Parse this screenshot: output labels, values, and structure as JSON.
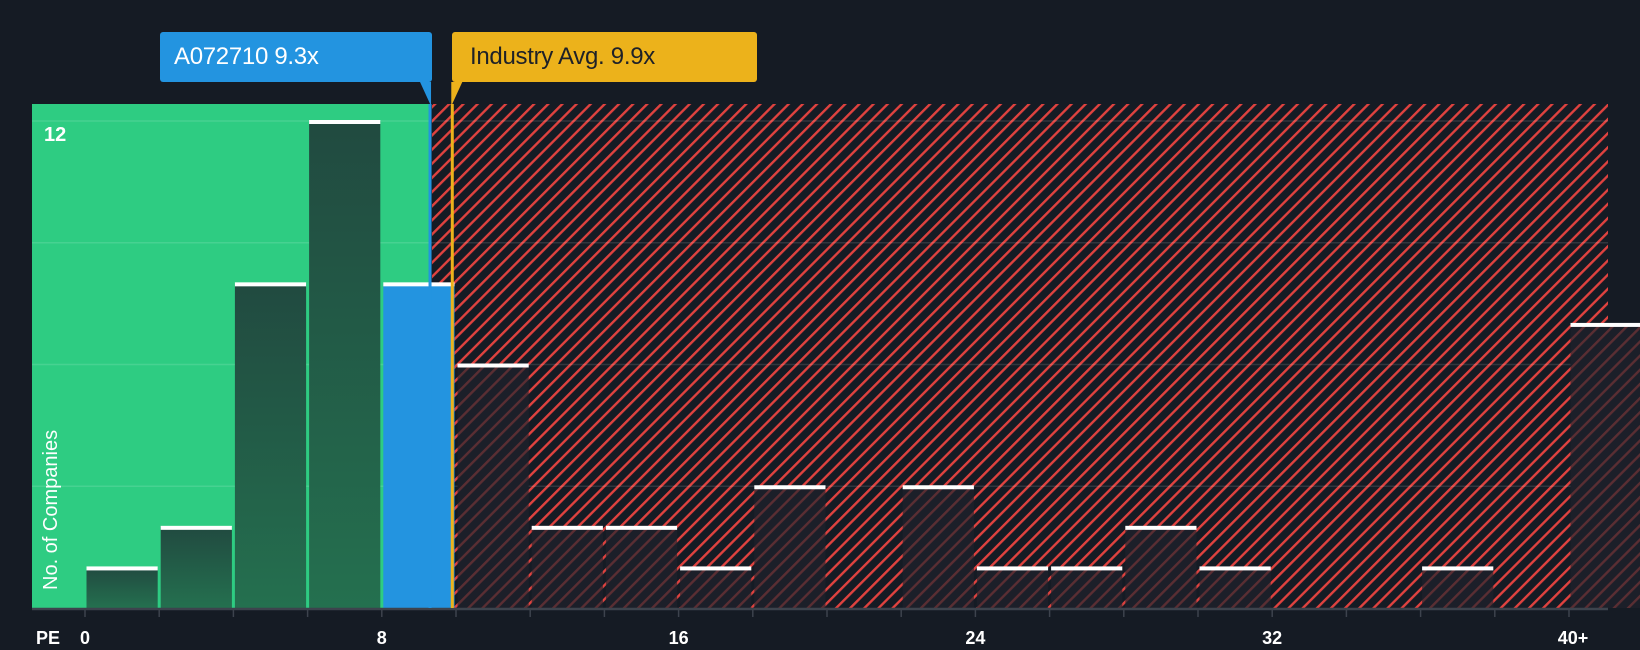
{
  "chart_data": {
    "type": "bar",
    "title": "",
    "xlabel": "PE",
    "ylabel": "No. of Companies",
    "x_tick_labels": [
      "0",
      "8",
      "16",
      "24",
      "32",
      "40+"
    ],
    "y_tick_labels": [
      "12"
    ],
    "ylim": [
      0,
      12.4
    ],
    "grid": true,
    "bin_width": 2,
    "categories": [
      "0-2",
      "2-4",
      "4-6",
      "6-8",
      "8-10",
      "10-12",
      "12-14",
      "14-16",
      "16-18",
      "18-20",
      "20-22",
      "22-24",
      "24-26",
      "26-28",
      "28-30",
      "30-32",
      "32-34",
      "34-36",
      "36-38",
      "38-40",
      "40+"
    ],
    "values": [
      1,
      2,
      8,
      12,
      8,
      6,
      2,
      2,
      1,
      3,
      0,
      3,
      1,
      1,
      2,
      1,
      0,
      0,
      1,
      0,
      7
    ],
    "highlight_bin_index": 4,
    "annotations": [
      {
        "label": "A072710 9.3x",
        "value": 9.3,
        "color": "#2394e0"
      },
      {
        "label": "Industry Avg. 9.9x",
        "value": 9.9,
        "color": "#ecb21b"
      }
    ],
    "regions": [
      {
        "name": "undervalued",
        "from": 0,
        "to": 9.3,
        "color": "#2ecc82"
      },
      {
        "name": "overvalued",
        "from": 9.3,
        "to": 41,
        "color": "#e0423f",
        "pattern": "hatched"
      }
    ]
  },
  "labels": {
    "company_callout": "A072710 9.3x",
    "industry_callout": "Industry Avg. 9.9x",
    "y_axis_title": "No. of Companies",
    "y_max_label": "12",
    "x_axis_title": "PE",
    "x_ticks": [
      {
        "label": "0",
        "value": 0
      },
      {
        "label": "8",
        "value": 8
      },
      {
        "label": "16",
        "value": 16
      },
      {
        "label": "24",
        "value": 24
      },
      {
        "label": "32",
        "value": 32
      },
      {
        "label": "40+",
        "value": 40
      }
    ]
  },
  "colors": {
    "background": "#151b24",
    "green_region": "#2ecc82",
    "bar_dark_top": "#214a40",
    "bar_dark_bottom": "#24704f",
    "highlight_bar": "#2394e0",
    "hatch": "#e0423f",
    "industry_line": "#ecb21b",
    "company_line": "#2394e0"
  }
}
